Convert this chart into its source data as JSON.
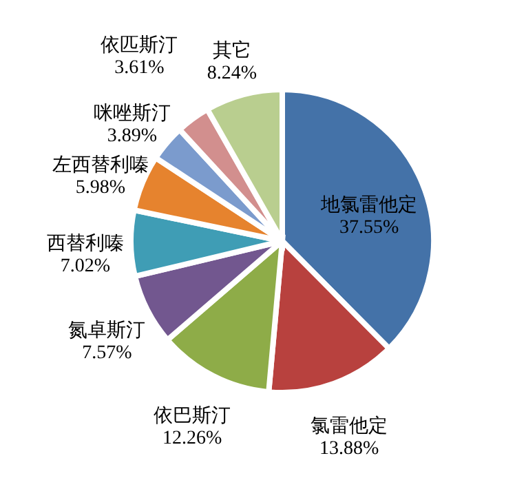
{
  "chart_data": {
    "type": "pie",
    "categories": [
      "地氯雷他定",
      "氯雷他定",
      "依巴斯汀",
      "氮卓斯汀",
      "西替利嗪",
      "左西替利嗪",
      "咪唑斯汀",
      "依匹斯汀",
      "其它"
    ],
    "values": [
      37.55,
      13.88,
      12.26,
      7.57,
      7.02,
      5.98,
      3.89,
      3.61,
      8.24
    ],
    "value_labels": [
      "37.55%",
      "13.88%",
      "12.26%",
      "7.57%",
      "7.02%",
      "5.98%",
      "3.89%",
      "3.61%",
      "8.24%"
    ],
    "colors": [
      "#4472a8",
      "#b8413e",
      "#8eac48",
      "#72578f",
      "#3f9db5",
      "#e6832e",
      "#7b9bcd",
      "#d28f8e",
      "#b9ce8f"
    ]
  }
}
